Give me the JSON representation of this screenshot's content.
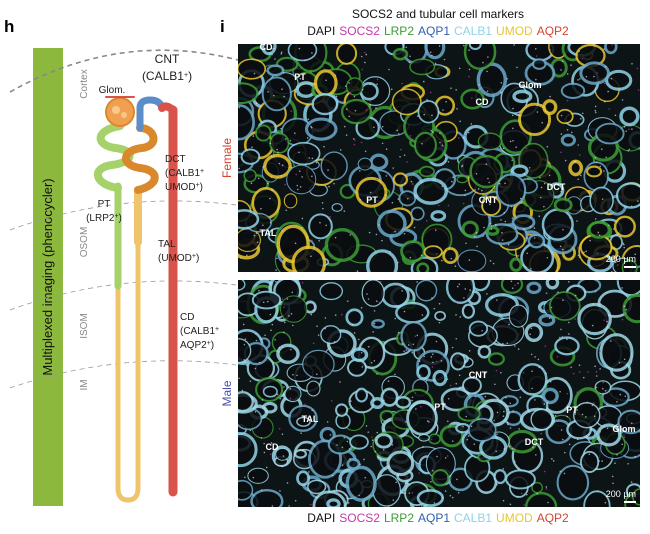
{
  "panel_h": {
    "label": "h",
    "sidebar": "Multiplexed imaging (phenocycler)",
    "regions": [
      "Cortex",
      "OSOM",
      "ISOM",
      "IM"
    ],
    "segments": [
      {
        "lines": [
          [
            "CNT"
          ],
          [
            "(CALB1",
            "+",
            ")"
          ]
        ]
      },
      {
        "lines": [
          [
            "Glom."
          ]
        ]
      },
      {
        "lines": [
          [
            "DCT"
          ],
          [
            "(CALB1",
            "+"
          ],
          [
            "UMOD",
            "+",
            ")"
          ]
        ]
      },
      {
        "lines": [
          [
            "PT"
          ],
          [
            "(LRP2",
            "+",
            ")"
          ]
        ]
      },
      {
        "lines": [
          [
            "TAL"
          ],
          [
            "(UMOD",
            "+",
            ")"
          ]
        ]
      },
      {
        "lines": [
          [
            "CD"
          ],
          [
            "(CALB1",
            "+"
          ],
          [
            "AQP2",
            "+",
            ")"
          ]
        ]
      }
    ]
  },
  "panel_i": {
    "label": "i",
    "title": "SOCS2 and tubular cell markers",
    "markers": [
      {
        "name": "DAPI",
        "color": "#111111"
      },
      {
        "name": "SOCS2",
        "color": "#c23aa8"
      },
      {
        "name": "LRP2",
        "color": "#3d9b35"
      },
      {
        "name": "AQP1",
        "color": "#2f5fb3"
      },
      {
        "name": "CALB1",
        "color": "#8fd3e8"
      },
      {
        "name": "UMOD",
        "color": "#e8c630"
      },
      {
        "name": "AQP2",
        "color": "#d2452f"
      }
    ],
    "images": [
      {
        "sex": "Female",
        "sex_color": "#d2452f",
        "scale_bar": "200 µm",
        "annotations": [
          "CD",
          "PT",
          "Glom",
          "CD",
          "PT",
          "CNT",
          "DCT",
          "TAL"
        ]
      },
      {
        "sex": "Male",
        "sex_color": "#4a4fb0",
        "scale_bar": "200 µm",
        "annotations": [
          "CNT",
          "PT",
          "PT",
          "TAL",
          "CD",
          "DCT",
          "Glom"
        ]
      }
    ]
  }
}
